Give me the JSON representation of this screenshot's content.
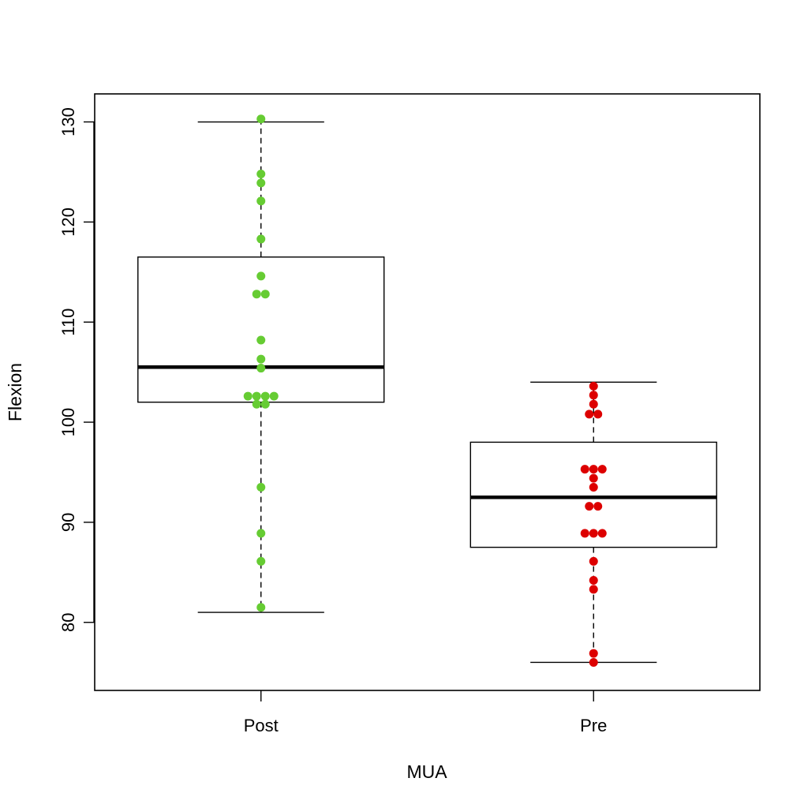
{
  "chart_data": {
    "type": "box",
    "xlabel": "MUA",
    "ylabel": "Flexion",
    "categories": [
      "Post",
      "Pre"
    ],
    "ylim": [
      73.2,
      132.8
    ],
    "y_ticks": [
      80,
      90,
      100,
      110,
      120,
      130
    ],
    "grid": false,
    "legend": "none",
    "boxes": [
      {
        "name": "Post",
        "whisker_low": 81,
        "q1": 102,
        "median": 105.5,
        "q3": 116.5,
        "whisker_high": 130
      },
      {
        "name": "Pre",
        "whisker_low": 76,
        "q1": 87.5,
        "median": 92.5,
        "q3": 98,
        "whisker_high": 104
      }
    ],
    "points": [
      {
        "name": "Post",
        "color": "#66cc33",
        "values": [
          130.3,
          124.8,
          123.9,
          122.1,
          118.3,
          114.6,
          112.8,
          112.8,
          108.2,
          106.3,
          105.4,
          102.6,
          102.6,
          102.6,
          102.6,
          101.8,
          101.8,
          93.5,
          88.9,
          86.1,
          81.5
        ]
      },
      {
        "name": "Pre",
        "color": "#dd0000",
        "values": [
          103.6,
          102.7,
          101.8,
          100.8,
          100.8,
          95.3,
          95.3,
          95.3,
          94.4,
          93.5,
          91.6,
          91.6,
          88.9,
          88.9,
          88.9,
          86.1,
          84.2,
          83.3,
          76.9,
          76.0
        ]
      }
    ]
  }
}
